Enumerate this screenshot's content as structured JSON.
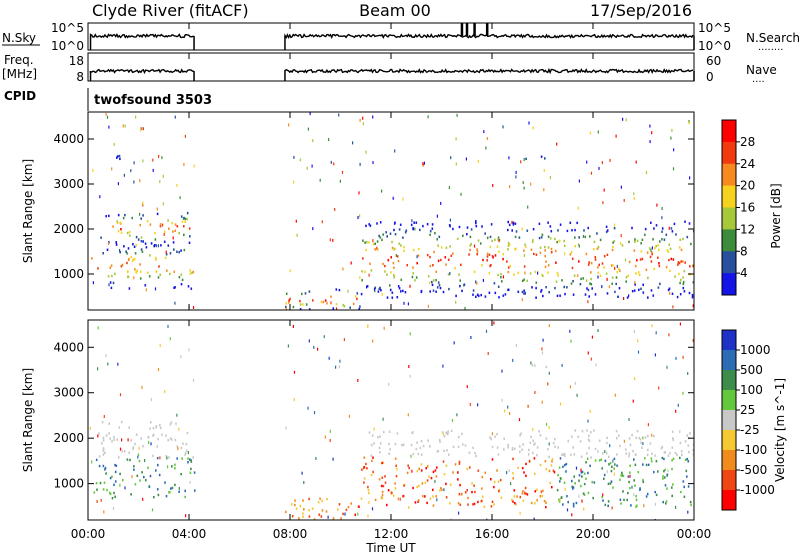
{
  "header": {
    "station": "Clyde River (fitACF)",
    "beam": "Beam 00",
    "date": "17/Sep/2016"
  },
  "chart_data": [
    {
      "type": "line",
      "panel": "nsky-nsearch",
      "ylabel_left": "N.Sky",
      "ylabel_right": "N.Search",
      "right_dots": "........",
      "left_ticks": [
        "10^5",
        "10^0"
      ],
      "right_ticks": [
        "10^5",
        "10^0"
      ],
      "segments": [
        [
          0.1,
          4.2
        ],
        [
          7.8,
          24.0
        ]
      ],
      "spikes_x": [
        14.8,
        15.0,
        15.3,
        15.8
      ]
    },
    {
      "type": "line",
      "panel": "freq-nave",
      "ylabel_left": "Freq.",
      "ylabel_left_unit": "[MHz]",
      "ylabel_right": "Nave",
      "right_dots": "....",
      "left_ticks": [
        "18",
        "8"
      ],
      "right_ticks": [
        "60",
        "0"
      ],
      "segments": [
        [
          0.1,
          4.2
        ],
        [
          7.8,
          24.0
        ]
      ]
    },
    {
      "type": "text",
      "panel": "cpid",
      "label": "CPID",
      "program": "twofsound 3503"
    },
    {
      "type": "heatmap",
      "panel": "power",
      "ylabel": "Slant Range [km]",
      "yticks": [
        "1000",
        "2000",
        "3000",
        "4000"
      ],
      "ylim": [
        200,
        4600
      ],
      "xlim": [
        0,
        24
      ],
      "colorbar_label": "Power [dB]",
      "colorbar_ticks": [
        "28",
        "24",
        "20",
        "16",
        "12",
        "8",
        "4"
      ],
      "colorbar_colors": [
        "#ff0000",
        "#f23a10",
        "#f78a1e",
        "#f5d21e",
        "#a6c83a",
        "#3c8c3c",
        "#28509c",
        "#1414e6"
      ],
      "regions": [
        {
          "x": [
            0.1,
            4.2
          ],
          "y": [
            700,
            1700
          ]
        },
        {
          "x": [
            0.4,
            4.0
          ],
          "y": [
            1700,
            2400
          ]
        },
        {
          "x": [
            1.0,
            1.9
          ],
          "y": [
            3450,
            3650
          ]
        },
        {
          "x": [
            7.8,
            10.8
          ],
          "y": [
            200,
            700
          ]
        },
        {
          "x": [
            10.8,
            24.0
          ],
          "y": [
            500,
            2200
          ]
        },
        {
          "x": [
            17.2,
            18.2
          ],
          "y": [
            3550,
            3700
          ]
        }
      ]
    },
    {
      "type": "heatmap",
      "panel": "velocity",
      "ylabel": "Slant Range [km]",
      "yticks": [
        "1000",
        "2000",
        "3000",
        "4000"
      ],
      "ylim": [
        200,
        4600
      ],
      "xlim": [
        0,
        24
      ],
      "xlabel": "Time UT",
      "xticks": [
        "00:00",
        "04:00",
        "08:00",
        "12:00",
        "16:00",
        "20:00",
        "00:00"
      ],
      "colorbar_label": "Velocity [m s^-1]",
      "colorbar_ticks": [
        "1000",
        "500",
        "100",
        "25",
        "-25",
        "-100",
        "-500",
        "-1000"
      ],
      "colorbar_colors": [
        "#1e32c8",
        "#2c6cb4",
        "#3c8c4c",
        "#64c83c",
        "#c8c8c8",
        "#f5c832",
        "#f08c1e",
        "#f04614",
        "#ff0000"
      ],
      "regions": [
        {
          "x": [
            0.1,
            4.2
          ],
          "y": [
            700,
            1700
          ]
        },
        {
          "x": [
            0.4,
            4.0
          ],
          "y": [
            1700,
            2400
          ]
        },
        {
          "x": [
            7.8,
            10.8
          ],
          "y": [
            200,
            700
          ]
        },
        {
          "x": [
            10.8,
            24.0
          ],
          "y": [
            500,
            2200
          ]
        },
        {
          "x": [
            17.2,
            18.2
          ],
          "y": [
            3550,
            3700
          ]
        }
      ]
    }
  ]
}
